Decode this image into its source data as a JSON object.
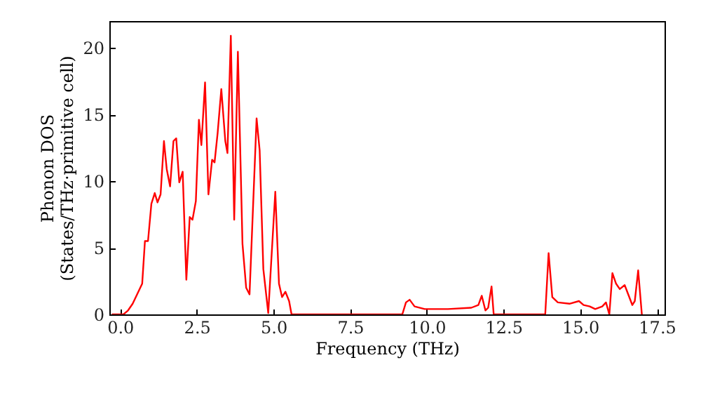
{
  "chart_data": {
    "type": "line",
    "xlabel": "Frequency (THz)",
    "ylabel": "Phonon DOS\n(States/THz·primitive cell)",
    "xlim": [
      -0.35,
      17.75
    ],
    "ylim": [
      0,
      22
    ],
    "xticks": [
      {
        "value": 0,
        "label": "0.0"
      },
      {
        "value": 2.5,
        "label": "2.5"
      },
      {
        "value": 5,
        "label": "5.0"
      },
      {
        "value": 7.5,
        "label": "7.5"
      },
      {
        "value": 10,
        "label": "10.0"
      },
      {
        "value": 12.5,
        "label": "12.5"
      },
      {
        "value": 15,
        "label": "15.0"
      },
      {
        "value": 17.5,
        "label": "17.5"
      }
    ],
    "yticks": [
      0,
      5,
      10,
      15,
      20
    ],
    "grid": false,
    "marker": "none",
    "line_style": "solid",
    "series": [
      {
        "color": "#ff0000",
        "x": [
          -0.27,
          0.11,
          0.26,
          0.41,
          0.72,
          0.81,
          0.91,
          1.02,
          1.13,
          1.22,
          1.32,
          1.43,
          1.52,
          1.63,
          1.74,
          1.83,
          1.93,
          2.04,
          2.16,
          2.27,
          2.36,
          2.47,
          2.57,
          2.65,
          2.77,
          2.88,
          3.0,
          3.08,
          3.18,
          3.3,
          3.43,
          3.5,
          3.61,
          3.72,
          3.84,
          3.99,
          4.11,
          4.22,
          4.45,
          4.55,
          4.67,
          4.83,
          5.06,
          5.18,
          5.28,
          5.39,
          5.51,
          5.59,
          9.2,
          9.32,
          9.44,
          9.6,
          9.93,
          10.69,
          11.45,
          11.68,
          11.79,
          11.91,
          12.0,
          12.11,
          12.18,
          13.86,
          13.97,
          14.09,
          14.27,
          14.65,
          14.96,
          15.11,
          15.31,
          15.49,
          15.72,
          15.84,
          15.95,
          16.05,
          16.17,
          16.29,
          16.45,
          16.7,
          16.78,
          16.89,
          17.01
        ],
        "values": [
          0,
          0,
          0.3,
          0.8,
          2.3,
          5.5,
          5.5,
          8.3,
          9.1,
          8.4,
          9.0,
          13.0,
          10.9,
          9.6,
          13.0,
          13.2,
          9.9,
          10.7,
          2.6,
          7.3,
          7.1,
          8.5,
          14.6,
          12.7,
          17.4,
          9.0,
          11.6,
          11.4,
          13.6,
          16.9,
          13.0,
          12.1,
          20.9,
          7.1,
          19.7,
          5.3,
          2.0,
          1.5,
          14.7,
          12.3,
          3.4,
          0.1,
          9.2,
          2.3,
          1.3,
          1.7,
          1.0,
          0,
          0,
          0.9,
          1.1,
          0.6,
          0.4,
          0.4,
          0.5,
          0.7,
          1.4,
          0.3,
          0.5,
          2.1,
          0,
          0,
          4.6,
          1.3,
          0.9,
          0.8,
          1.0,
          0.7,
          0.6,
          0.4,
          0.6,
          0.9,
          0,
          3.1,
          2.3,
          1.9,
          2.2,
          0.7,
          1.0,
          3.3,
          0
        ]
      }
    ]
  }
}
